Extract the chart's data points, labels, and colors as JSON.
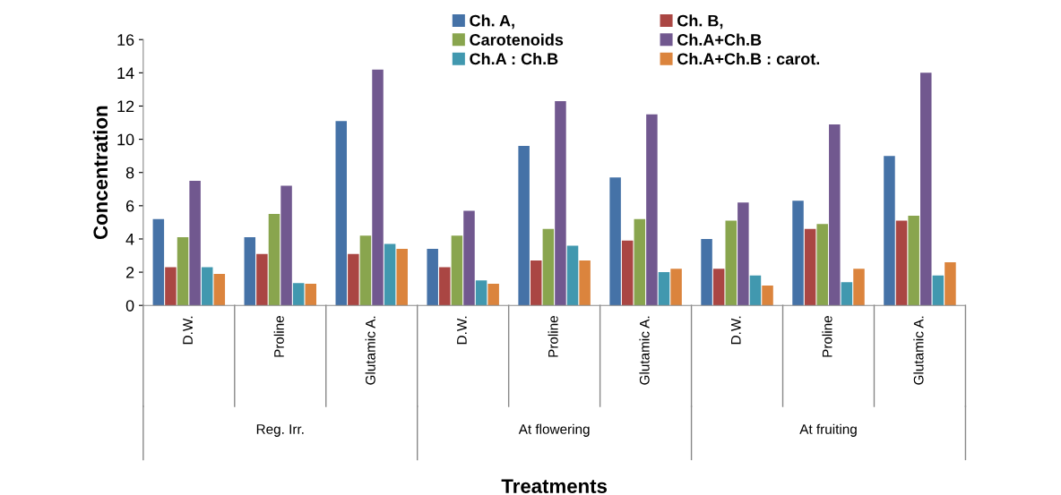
{
  "chart_data": {
    "type": "bar",
    "xlabel": "Treatments",
    "ylabel": "Concentration",
    "categories": [
      "D.W.",
      "Proline",
      "Glutamic A.",
      "D.W.",
      "Proline",
      "Glutamic A.",
      "D.W.",
      "Proline",
      "Glutamic A."
    ],
    "series": [
      {
        "name": "Ch. A,",
        "color": "#4572a7",
        "values": [
          5.2,
          4.1,
          11.1,
          3.4,
          9.6,
          7.7,
          4.0,
          6.3,
          9.0
        ]
      },
      {
        "name": "Ch. B,",
        "color": "#aa4643",
        "values": [
          2.3,
          3.1,
          3.1,
          2.3,
          2.7,
          3.9,
          2.2,
          4.6,
          5.1
        ]
      },
      {
        "name": "Carotenoids",
        "color": "#89a54e",
        "values": [
          4.1,
          5.5,
          4.2,
          4.2,
          4.6,
          5.2,
          5.1,
          4.9,
          5.4
        ]
      },
      {
        "name": "Ch.A+Ch.B",
        "color": "#71588f",
        "values": [
          7.5,
          7.2,
          14.2,
          5.7,
          12.3,
          11.5,
          6.2,
          10.9,
          14.0
        ]
      },
      {
        "name": "Ch.A : Ch.B",
        "color": "#4198af",
        "values": [
          2.3,
          1.35,
          3.7,
          1.5,
          3.6,
          2.0,
          1.8,
          1.4,
          1.8
        ]
      },
      {
        "name": "Ch.A+Ch.B : carot.",
        "color": "#db843d",
        "values": [
          1.9,
          1.3,
          3.4,
          1.3,
          2.7,
          2.2,
          1.2,
          2.2,
          2.6
        ]
      }
    ],
    "annotations": [
      "Reg. Irr.",
      "At flowering",
      "At fruiting"
    ],
    "ylim": [
      0,
      16
    ],
    "yticks": [
      0,
      2,
      4,
      6,
      8,
      10,
      12,
      14,
      16
    ],
    "grid": false,
    "legend": "top"
  }
}
